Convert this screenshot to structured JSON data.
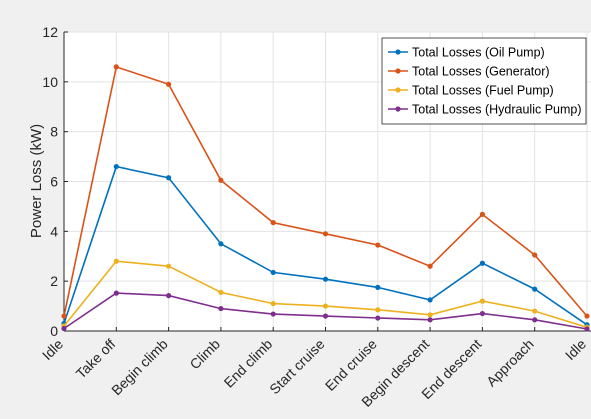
{
  "chart_data": {
    "type": "line",
    "title": "",
    "xlabel": "",
    "ylabel": "Power Loss (kW)",
    "ylim": [
      0,
      12
    ],
    "yticks": [
      0,
      2,
      4,
      6,
      8,
      10,
      12
    ],
    "grid": true,
    "legend_position": "top-right",
    "categories": [
      "Idle",
      "Take off",
      "Begin climb",
      "Climb",
      "End climb",
      "Start cruise",
      "End cruise",
      "Begin descent",
      "End descent",
      "Approach",
      "Idle"
    ],
    "series": [
      {
        "name": "Total Losses (Oil Pump)",
        "color": "#0072BD",
        "values": [
          0.3,
          6.6,
          6.15,
          3.5,
          2.35,
          2.08,
          1.75,
          1.25,
          2.72,
          1.68,
          0.25
        ]
      },
      {
        "name": "Total Losses (Generator)",
        "color": "#D95319",
        "values": [
          0.6,
          10.6,
          9.9,
          6.05,
          4.35,
          3.9,
          3.45,
          2.6,
          4.68,
          3.05,
          0.6
        ]
      },
      {
        "name": "Total Losses (Fuel Pump)",
        "color": "#EDB120",
        "values": [
          0.2,
          2.8,
          2.6,
          1.55,
          1.1,
          1.0,
          0.85,
          0.65,
          1.2,
          0.8,
          0.15
        ]
      },
      {
        "name": "Total Losses (Hydraulic Pump)",
        "color": "#7E2F8E",
        "values": [
          0.1,
          1.52,
          1.42,
          0.9,
          0.68,
          0.6,
          0.52,
          0.45,
          0.7,
          0.45,
          0.08
        ]
      }
    ]
  }
}
